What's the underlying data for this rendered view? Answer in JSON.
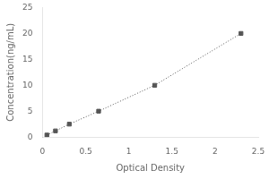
{
  "chart_data": {
    "type": "line",
    "x": [
      0.05,
      0.15,
      0.31,
      0.65,
      1.3,
      2.3
    ],
    "values": [
      0.4,
      1.2,
      2.5,
      5.0,
      10.0,
      20.0
    ],
    "xlabel": "Optical Density",
    "ylabel": "Concentration(ng/mL)",
    "xlim": [
      0,
      2.5
    ],
    "ylim": [
      0,
      25
    ],
    "xticks": [
      0,
      0.5,
      1,
      1.5,
      2,
      2.5
    ],
    "yticks": [
      0,
      5,
      10,
      15,
      20,
      25
    ],
    "color": "#555555",
    "marker": "square",
    "line_style": "dotted",
    "grid": false
  }
}
